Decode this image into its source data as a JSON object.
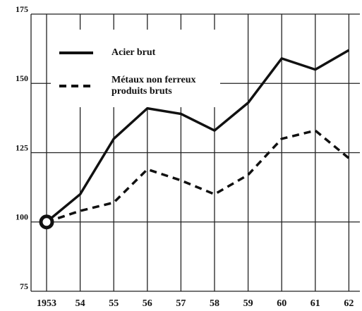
{
  "chart_data": {
    "type": "line",
    "categories": [
      "1953",
      "54",
      "55",
      "56",
      "57",
      "58",
      "59",
      "60",
      "61",
      "62"
    ],
    "series": [
      {
        "name": "Acier brut",
        "color": "#111111",
        "dash": "solid",
        "values": [
          100,
          110,
          130,
          141,
          139,
          133,
          143,
          159,
          155,
          162
        ]
      },
      {
        "name": "Métaux non ferreux\nproduits bruts",
        "color": "#111111",
        "dash": "dashed",
        "values": [
          100,
          104,
          107,
          119,
          115,
          110,
          117,
          130,
          133,
          123
        ]
      }
    ],
    "ylim": [
      75,
      175
    ],
    "yticks": [
      75,
      100,
      125,
      150,
      175
    ],
    "grid": true
  }
}
